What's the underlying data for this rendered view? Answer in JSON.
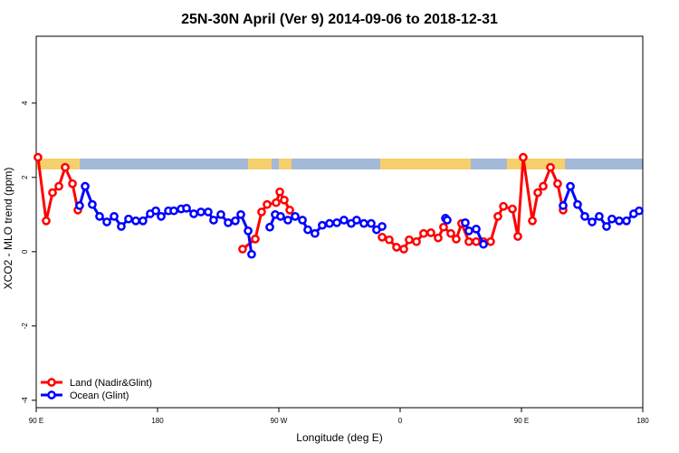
{
  "chart_data": {
    "type": "line",
    "title": "25N-30N April (Ver 9)   2014-09-06 to 2018-12-31",
    "x_label": "Longitude (deg E)",
    "y_label": "XCO2 - MLO trend (ppm)",
    "xlim": [
      90,
      540
    ],
    "ylim": [
      -4.2,
      5.8
    ],
    "xticks": [
      {
        "value": 90,
        "label": "90 E"
      },
      180,
      {
        "value": 270,
        "label": "90 W"
      },
      {
        "value": 360,
        "label": "0"
      },
      {
        "value": 450,
        "label": "90 E"
      },
      {
        "value": 540,
        "label": "180"
      }
    ],
    "yticks": [
      -4,
      -2,
      0,
      2,
      4
    ],
    "legend": "bottom-left",
    "series": [
      {
        "name": "Land (Nadir&Glint)",
        "color": "#ff0000",
        "x": [
          91.3,
          97.4,
          102.1,
          106.8,
          111.5,
          116.9,
          120.9,
          null,
          243.1,
          252.5,
          257.2,
          261.3,
          268.0,
          270.7,
          274.0,
          278.1,
          null,
          346.6,
          351.9,
          357.3,
          362.7,
          366.7,
          372.1,
          377.4,
          382.8,
          388.2,
          392.2,
          397.6,
          401.6,
          405.6,
          411.0,
          416.4,
          421.8,
          427.1,
          432.5,
          436.6,
          443.3,
          447.3,
          451.3,
          458.1,
          462.1,
          466.1,
          471.5,
          476.8,
          480.9
        ],
        "values": [
          2.54,
          0.83,
          1.59,
          1.76,
          2.27,
          1.83,
          1.12,
          null,
          0.07,
          0.34,
          1.07,
          1.27,
          1.32,
          1.61,
          1.39,
          1.12,
          null,
          0.39,
          0.32,
          0.12,
          0.07,
          0.32,
          0.27,
          0.49,
          0.51,
          0.37,
          0.66,
          0.49,
          0.34,
          0.76,
          0.27,
          0.27,
          0.27,
          0.27,
          0.95,
          1.22,
          1.15,
          0.41,
          2.54,
          0.83,
          1.59,
          1.76,
          2.27,
          1.83,
          1.12
        ]
      },
      {
        "name": "Ocean (Glint)",
        "color": "#0000ff",
        "x": [
          122.2,
          126.3,
          131.6,
          137.0,
          142.4,
          147.8,
          153.1,
          158.5,
          163.9,
          169.2,
          174.6,
          178.7,
          182.7,
          188.1,
          192.1,
          197.5,
          201.5,
          206.9,
          212.2,
          217.6,
          221.6,
          227.0,
          232.4,
          237.7,
          241.8,
          247.2,
          249.8,
          null,
          263.3,
          267.3,
          271.3,
          276.7,
          282.1,
          287.5,
          291.5,
          296.8,
          302.2,
          307.6,
          313.0,
          318.3,
          323.7,
          327.7,
          333.1,
          338.5,
          342.5,
          346.6,
          null,
          393.6,
          394.9,
          null,
          408.3,
          411.0,
          416.4,
          421.8,
          null,
          480.9,
          486.3,
          491.6,
          497.0,
          502.4,
          507.7,
          513.1,
          517.1,
          522.5,
          527.9,
          533.2,
          537.3
        ],
        "values": [
          1.24,
          1.76,
          1.27,
          0.95,
          0.8,
          0.95,
          0.68,
          0.88,
          0.83,
          0.83,
          1.02,
          1.1,
          0.95,
          1.1,
          1.1,
          1.15,
          1.17,
          1.02,
          1.07,
          1.07,
          0.85,
          1.0,
          0.78,
          0.83,
          1.0,
          0.56,
          -0.07,
          null,
          0.66,
          1.0,
          0.95,
          0.85,
          0.95,
          0.85,
          0.59,
          0.49,
          0.71,
          0.76,
          0.78,
          0.85,
          0.76,
          0.85,
          0.76,
          0.76,
          0.59,
          0.68,
          null,
          0.9,
          0.85,
          null,
          0.78,
          0.56,
          0.61,
          0.2,
          null,
          1.24,
          1.76,
          1.27,
          0.95,
          0.8,
          0.95,
          0.68,
          0.88,
          0.83,
          0.83,
          1.02,
          1.1
        ]
      }
    ]
  }
}
